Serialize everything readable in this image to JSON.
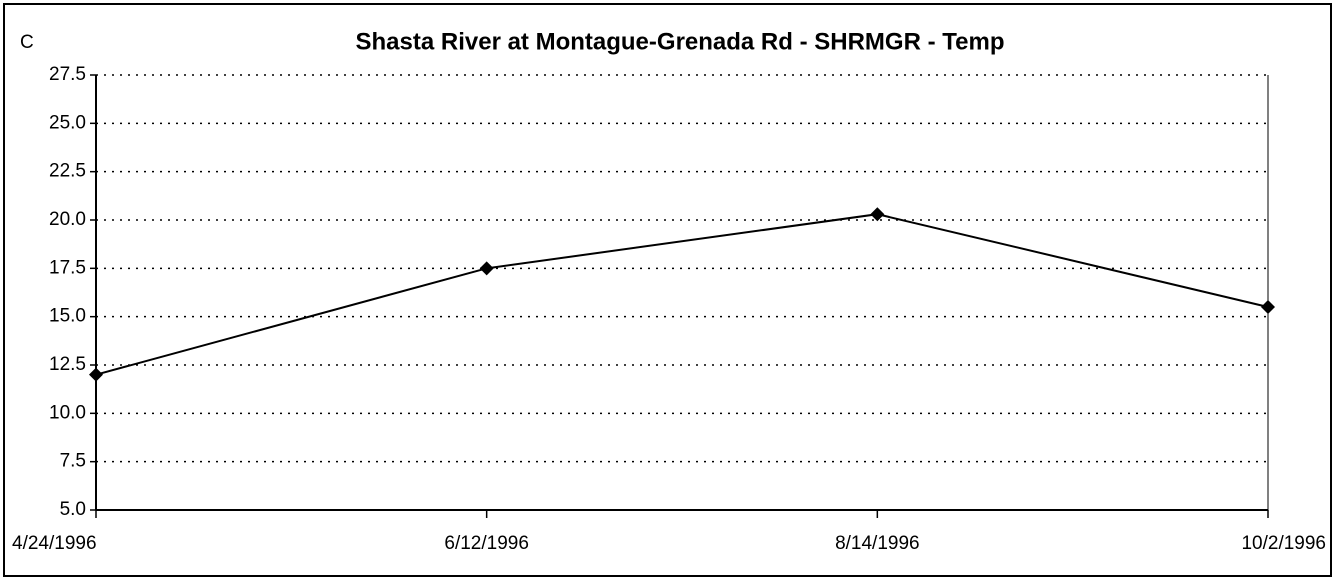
{
  "chart_data": {
    "type": "line",
    "title": "Shasta River at Montague-Grenada Rd - SHRMGR - Temp",
    "y_label": "C",
    "categories": [
      "4/24/1996",
      "6/12/1996",
      "8/14/1996",
      "10/2/1996"
    ],
    "series": [
      {
        "name": "Temp",
        "color": "#000000",
        "values": [
          12.0,
          17.5,
          20.3,
          15.5
        ]
      }
    ],
    "ylim": [
      5,
      27.5
    ],
    "yticks": [
      {
        "value": 5,
        "label": "5.0"
      },
      7.5,
      {
        "value": 10,
        "label": "10.0"
      },
      12.5,
      {
        "value": 15,
        "label": "15.0"
      },
      17.5,
      {
        "value": 20,
        "label": "20.0"
      },
      22.5,
      {
        "value": 25,
        "label": "25.0"
      },
      27.5
    ],
    "grid": true
  }
}
